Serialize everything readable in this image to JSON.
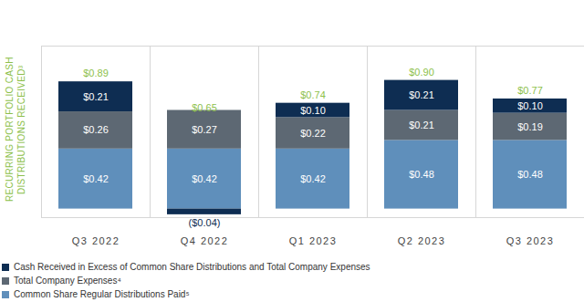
{
  "chart_data": {
    "type": "bar",
    "stacked": true,
    "orientation": "vertical",
    "data_labels": true,
    "tick_labels": "x",
    "grid": false,
    "legend": "bottom",
    "y_label": "RECURRING PORTFOLIO CASH DISTRIBUTIONS RECEIVED³",
    "categories": [
      "Q3 2022",
      "Q4 2022",
      "Q1 2023",
      "Q2 2023",
      "Q3 2023"
    ],
    "ylim": [
      -0.06,
      1.14
    ],
    "yticks": [],
    "series": [
      {
        "name": "Cash Received in Excess of Common Share Distributions and Total Company Expenses",
        "color": "#0e2d52",
        "values": [
          0.21,
          -0.04,
          0.1,
          0.21,
          0.1
        ],
        "value_labels": [
          "$0.21",
          "($0.04)",
          "$0.10",
          "$0.21",
          "$0.10"
        ]
      },
      {
        "name": "Total Company Expenses⁴",
        "color": "#5d6873",
        "values": [
          0.26,
          0.27,
          0.22,
          0.21,
          0.19
        ],
        "value_labels": [
          "$0.26",
          "$0.27",
          "$0.22",
          "$0.21",
          "$0.19"
        ]
      },
      {
        "name": "Common Share Regular Distributions Paid⁵",
        "color": "#5f8fbb",
        "values": [
          0.42,
          0.42,
          0.42,
          0.48,
          0.48
        ],
        "value_labels": [
          "$0.42",
          "$0.42",
          "$0.42",
          "$0.48",
          "$0.48"
        ]
      }
    ],
    "totals": [
      0.89,
      0.65,
      0.74,
      0.9,
      0.77
    ],
    "total_labels": [
      "$0.89",
      "$0.65",
      "$0.74",
      "$0.90",
      "$0.77"
    ]
  }
}
